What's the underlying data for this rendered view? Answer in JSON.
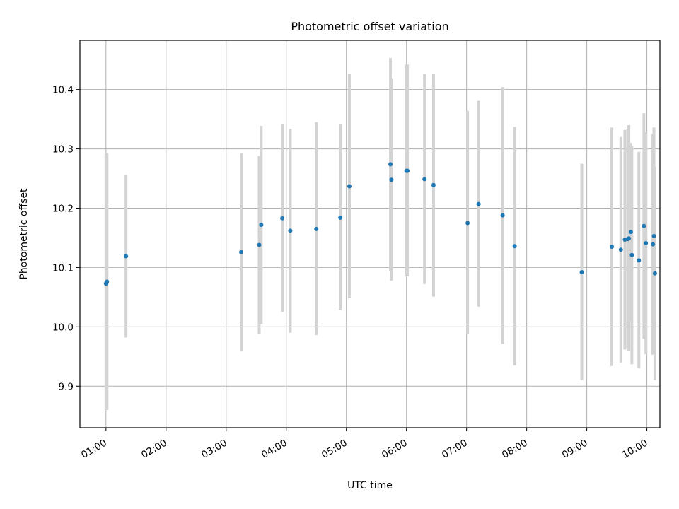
{
  "chart_data": {
    "type": "scatter",
    "title": "Photometric offset variation",
    "xlabel": "UTC time",
    "ylabel": "Photometric offset",
    "x_tick_labels": [
      "01:00",
      "02:00",
      "03:00",
      "04:00",
      "05:00",
      "06:00",
      "07:00",
      "08:00",
      "09:00",
      "10:00"
    ],
    "y_tick_labels": [
      "9.9",
      "10.0",
      "10.1",
      "10.2",
      "10.3",
      "10.4"
    ],
    "y_ticks": [
      9.9,
      10.0,
      10.1,
      10.2,
      10.3,
      10.4
    ],
    "xlim": [
      "00:34",
      "10:13"
    ],
    "ylim": [
      9.83,
      10.483
    ],
    "grid": true,
    "colors": {
      "points": "#1f77b4",
      "error_bars": "#d3d3d3",
      "grid": "#b0b0b0"
    },
    "points": [
      {
        "x": "01:00",
        "y": 10.073,
        "ylow": 9.86,
        "yhigh": 10.293
      },
      {
        "x": "01:01",
        "y": 10.076,
        "ylow": 9.86,
        "yhigh": 10.293
      },
      {
        "x": "01:20",
        "y": 10.119,
        "ylow": 9.982,
        "yhigh": 10.256
      },
      {
        "x": "03:15",
        "y": 10.126,
        "ylow": 9.959,
        "yhigh": 10.293
      },
      {
        "x": "03:33",
        "y": 10.138,
        "ylow": 9.988,
        "yhigh": 10.288
      },
      {
        "x": "03:35",
        "y": 10.172,
        "ylow": 10.005,
        "yhigh": 10.339
      },
      {
        "x": "03:56",
        "y": 10.183,
        "ylow": 10.025,
        "yhigh": 10.341
      },
      {
        "x": "04:04",
        "y": 10.162,
        "ylow": 9.99,
        "yhigh": 10.334
      },
      {
        "x": "04:30",
        "y": 10.165,
        "ylow": 9.986,
        "yhigh": 10.345
      },
      {
        "x": "04:54",
        "y": 10.184,
        "ylow": 10.028,
        "yhigh": 10.341
      },
      {
        "x": "05:03",
        "y": 10.237,
        "ylow": 10.048,
        "yhigh": 10.427
      },
      {
        "x": "05:44",
        "y": 10.274,
        "ylow": 10.094,
        "yhigh": 10.453
      },
      {
        "x": "05:45",
        "y": 10.248,
        "ylow": 10.078,
        "yhigh": 10.418
      },
      {
        "x": "06:00",
        "y": 10.263,
        "ylow": 10.085,
        "yhigh": 10.442
      },
      {
        "x": "06:01",
        "y": 10.263,
        "ylow": 10.085,
        "yhigh": 10.442
      },
      {
        "x": "06:18",
        "y": 10.249,
        "ylow": 10.072,
        "yhigh": 10.426
      },
      {
        "x": "06:27",
        "y": 10.239,
        "ylow": 10.051,
        "yhigh": 10.427
      },
      {
        "x": "07:01",
        "y": 10.175,
        "ylow": 9.988,
        "yhigh": 10.364
      },
      {
        "x": "07:12",
        "y": 10.207,
        "ylow": 10.034,
        "yhigh": 10.381
      },
      {
        "x": "07:36",
        "y": 10.188,
        "ylow": 9.971,
        "yhigh": 10.404
      },
      {
        "x": "07:48",
        "y": 10.136,
        "ylow": 9.935,
        "yhigh": 10.337
      },
      {
        "x": "08:55",
        "y": 10.092,
        "ylow": 9.91,
        "yhigh": 10.275
      },
      {
        "x": "09:25",
        "y": 10.135,
        "ylow": 9.934,
        "yhigh": 10.336
      },
      {
        "x": "09:34",
        "y": 10.13,
        "ylow": 9.94,
        "yhigh": 10.32
      },
      {
        "x": "09:38",
        "y": 10.147,
        "ylow": 9.962,
        "yhigh": 10.332
      },
      {
        "x": "09:41",
        "y": 10.148,
        "ylow": 9.965,
        "yhigh": 10.333
      },
      {
        "x": "09:42",
        "y": 10.149,
        "ylow": 9.96,
        "yhigh": 10.34
      },
      {
        "x": "09:44",
        "y": 10.16,
        "ylow": 10.01,
        "yhigh": 10.31
      },
      {
        "x": "09:45",
        "y": 10.121,
        "ylow": 9.937,
        "yhigh": 10.305
      },
      {
        "x": "09:52",
        "y": 10.112,
        "ylow": 9.93,
        "yhigh": 10.295
      },
      {
        "x": "09:57",
        "y": 10.17,
        "ylow": 9.98,
        "yhigh": 10.36
      },
      {
        "x": "09:59",
        "y": 10.141,
        "ylow": 9.954,
        "yhigh": 10.328
      },
      {
        "x": "10:06",
        "y": 10.139,
        "ylow": 9.953,
        "yhigh": 10.325
      },
      {
        "x": "10:07",
        "y": 10.153,
        "ylow": 9.97,
        "yhigh": 10.336
      },
      {
        "x": "10:08",
        "y": 10.09,
        "ylow": 9.91,
        "yhigh": 10.27
      }
    ]
  }
}
